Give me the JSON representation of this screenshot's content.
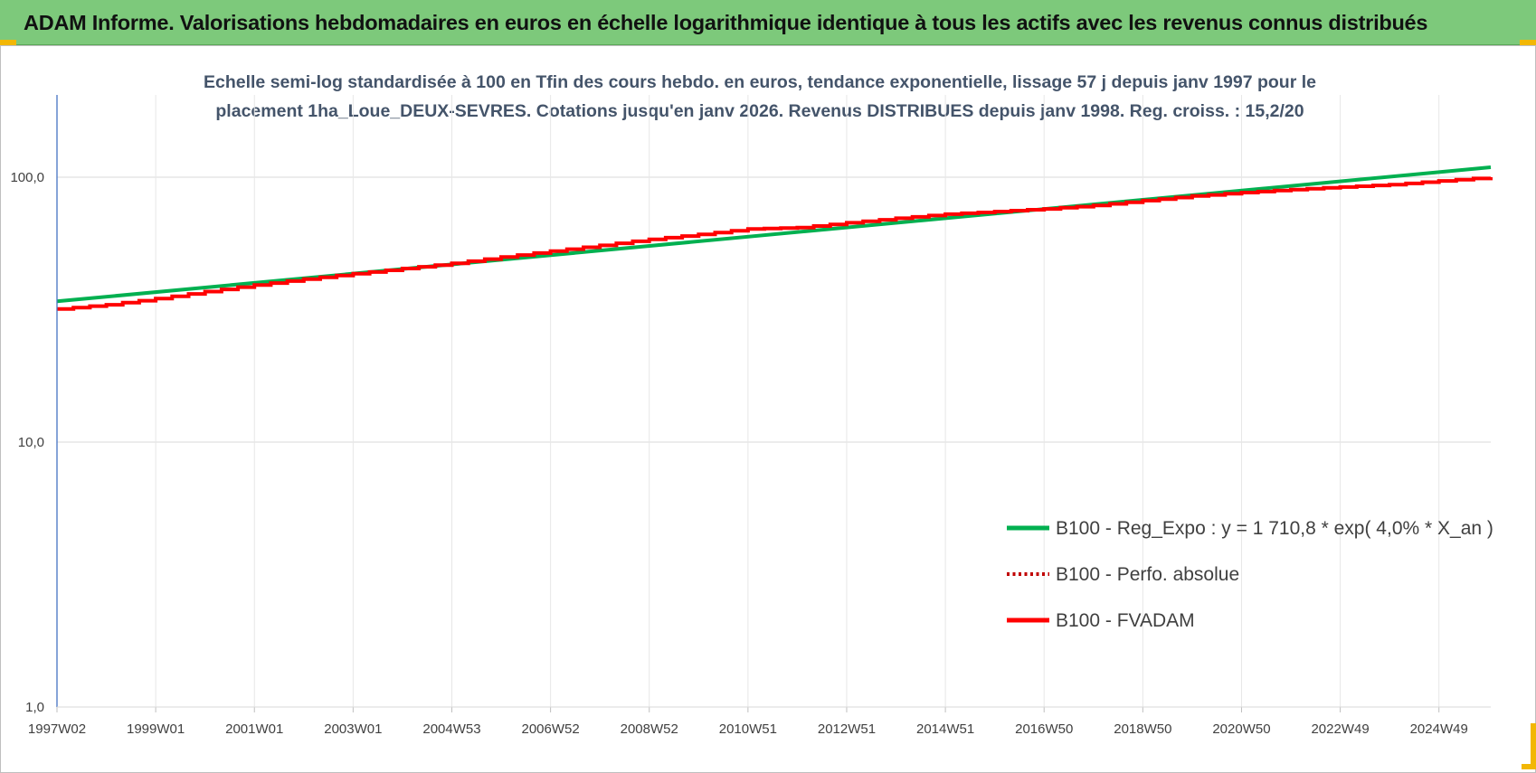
{
  "banner": {
    "title": "ADAM Informe. Valorisations hebdomadaires en euros en échelle logarithmique identique à tous les actifs avec les revenus connus distribués"
  },
  "colors": {
    "banner_bg": "#7dc97b",
    "corner_marks": "#f2b705",
    "series_regression": "#00b050",
    "series_perf": "#c00000",
    "series_fvadam": "#ff0000",
    "subtitle_text": "#44546a",
    "grid": "#d9d9d9",
    "y_axis": "#4472c4"
  },
  "chart_data": {
    "type": "line",
    "title_lines": [
      "Echelle semi-log standardisée à 100 en Tfin des cours hebdo. en euros, tendance exponentielle, lissage 57 j depuis janv 1997 pour le",
      "placement 1ha_Loue_DEUX-SEVRES. Cotations jusqu'en janv 2026. Revenus DISTRIBUES depuis janv 1998. Reg. croiss. : 15,2/20"
    ],
    "y_scale": "log",
    "ylim": [
      1,
      200
    ],
    "y_ticks": [
      {
        "value": 1,
        "label": "1,0"
      },
      {
        "value": 10,
        "label": "10,0"
      },
      {
        "value": 100,
        "label": "100,0"
      }
    ],
    "x_range": [
      1997.0,
      2026.05
    ],
    "x_ticks": [
      {
        "value": 1997.0,
        "label": "1997W02"
      },
      {
        "value": 1999.0,
        "label": "1999W01"
      },
      {
        "value": 2001.0,
        "label": "2001W01"
      },
      {
        "value": 2003.0,
        "label": "2003W01"
      },
      {
        "value": 2005.0,
        "label": "2004W53"
      },
      {
        "value": 2007.0,
        "label": "2006W52"
      },
      {
        "value": 2009.0,
        "label": "2008W52"
      },
      {
        "value": 2011.0,
        "label": "2010W51"
      },
      {
        "value": 2013.0,
        "label": "2012W51"
      },
      {
        "value": 2015.0,
        "label": "2014W51"
      },
      {
        "value": 2017.0,
        "label": "2016W50"
      },
      {
        "value": 2019.0,
        "label": "2018W50"
      },
      {
        "value": 2021.0,
        "label": "2020W50"
      },
      {
        "value": 2023.0,
        "label": "2022W49"
      },
      {
        "value": 2025.0,
        "label": "2024W49"
      }
    ],
    "grid": true,
    "legend_position": "bottom-right",
    "series": [
      {
        "name": "B100 - Reg_Expo : y = 1 710,8 * exp( 4,0% *  X_an )",
        "style": "solid",
        "color": "#00b050",
        "x": [
          1997.0,
          2026.05
        ],
        "y": [
          34.0,
          109.0
        ]
      },
      {
        "name": "B100 - Perfo. absolue",
        "style": "dotted",
        "color": "#c00000",
        "x": [
          1997.0,
          1998.0,
          1999.0,
          2000.0,
          2001.0,
          2002.0,
          2003.0,
          2004.0,
          2005.0,
          2006.0,
          2007.0,
          2008.0,
          2009.0,
          2010.0,
          2011.0,
          2012.0,
          2013.0,
          2014.0,
          2015.0,
          2016.0,
          2017.0,
          2018.0,
          2019.0,
          2020.0,
          2021.0,
          2022.0,
          2023.0,
          2024.0,
          2025.0,
          2026.05
        ],
        "y": [
          31.8,
          33.0,
          34.8,
          37.0,
          39.2,
          41.2,
          43.2,
          45.2,
          47.3,
          50.0,
          52.6,
          55.3,
          58.3,
          60.8,
          63.8,
          64.5,
          67.3,
          70.0,
          72.5,
          74.2,
          75.9,
          78.2,
          81.6,
          84.9,
          87.5,
          89.8,
          91.8,
          93.7,
          96.8,
          100.0
        ]
      },
      {
        "name": "B100 - FVADAM",
        "style": "solid",
        "color": "#ff0000",
        "x": [
          1997.0,
          1998.0,
          1999.0,
          2000.0,
          2001.0,
          2002.0,
          2003.0,
          2004.0,
          2005.0,
          2006.0,
          2007.0,
          2008.0,
          2009.0,
          2010.0,
          2011.0,
          2012.0,
          2013.0,
          2014.0,
          2015.0,
          2016.0,
          2017.0,
          2018.0,
          2019.0,
          2020.0,
          2021.0,
          2022.0,
          2023.0,
          2024.0,
          2025.0,
          2026.05
        ],
        "y": [
          31.8,
          33.0,
          34.8,
          37.0,
          39.2,
          41.2,
          43.2,
          45.2,
          47.3,
          50.0,
          52.6,
          55.3,
          58.3,
          60.8,
          63.8,
          64.5,
          67.3,
          70.0,
          72.5,
          74.2,
          75.9,
          78.2,
          81.6,
          84.9,
          87.5,
          89.8,
          91.8,
          93.7,
          96.8,
          100.0
        ]
      }
    ]
  }
}
